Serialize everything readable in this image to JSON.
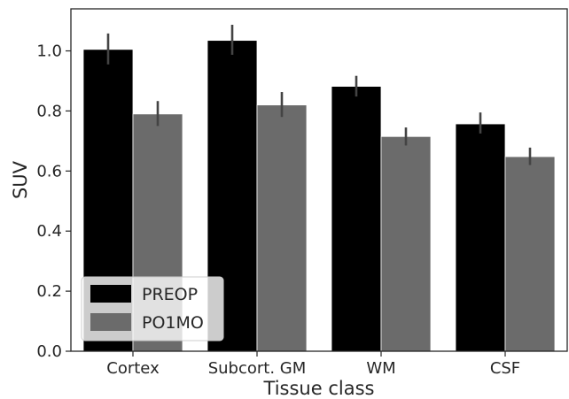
{
  "chart_data": {
    "type": "bar",
    "title": "",
    "xlabel": "Tissue class",
    "ylabel": "SUV",
    "categories": [
      "Cortex",
      "Subcort. GM",
      "WM",
      "CSF"
    ],
    "series": [
      {
        "name": "PREOP",
        "color": "#000000",
        "values": [
          1.005,
          1.035,
          0.882,
          0.757
        ],
        "error_low": [
          0.955,
          0.987,
          0.848,
          0.725
        ],
        "error_high": [
          1.058,
          1.087,
          0.917,
          0.795
        ]
      },
      {
        "name": "PO1MO",
        "color": "#6b6b6b",
        "values": [
          0.79,
          0.82,
          0.715,
          0.648
        ],
        "error_low": [
          0.75,
          0.78,
          0.685,
          0.62
        ],
        "error_high": [
          0.833,
          0.863,
          0.745,
          0.678
        ]
      }
    ],
    "ylim": [
      0,
      1.14
    ],
    "yticks": [
      "0.0",
      "0.2",
      "0.4",
      "0.6",
      "0.8",
      "1.0"
    ],
    "grid": false,
    "legend_position": "lower-left"
  }
}
